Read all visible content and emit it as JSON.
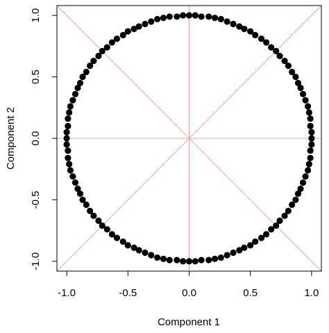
{
  "chart_data": {
    "type": "scatter",
    "x_label": "Component 1",
    "y_label": "Component 2",
    "color": "#000000",
    "xlim": [
      -1.08,
      1.08
    ],
    "ylim": [
      -1.08,
      1.08
    ],
    "xticks": [
      {
        "value": -1,
        "label": "-1.0"
      },
      {
        "value": -0.5,
        "label": "-0.5"
      },
      {
        "value": 0,
        "label": "0.0"
      },
      {
        "value": 0.5,
        "label": "0.5"
      },
      {
        "value": 1,
        "label": "1.0"
      }
    ],
    "yticks": [
      {
        "value": -1,
        "label": "-1.0"
      },
      {
        "value": -0.5,
        "label": "-0.5"
      },
      {
        "value": 0,
        "label": "0.0"
      },
      {
        "value": 0.5,
        "label": "0.5"
      },
      {
        "value": 1,
        "label": "1.0"
      }
    ],
    "x": [
      1,
      1,
      0.99,
      0.99,
      0.98,
      0.97,
      0.95,
      0.93,
      0.91,
      0.89,
      0.87,
      0.84,
      0.81,
      0.78,
      0.74,
      0.71,
      0.67,
      0.63,
      0.59,
      0.54,
      0.5,
      0.45,
      0.41,
      0.36,
      0.31,
      0.26,
      0.21,
      0.16,
      0.1,
      0.05,
      0,
      -0.05,
      -0.1,
      -0.16,
      -0.21,
      -0.26,
      -0.31,
      -0.36,
      -0.41,
      -0.45,
      -0.5,
      -0.54,
      -0.59,
      -0.63,
      -0.67,
      -0.71,
      -0.74,
      -0.78,
      -0.81,
      -0.84,
      -0.87,
      -0.89,
      -0.91,
      -0.93,
      -0.95,
      -0.97,
      -0.98,
      -0.99,
      -0.99,
      -1,
      -1,
      -1,
      -0.99,
      -0.99,
      -0.98,
      -0.97,
      -0.95,
      -0.93,
      -0.91,
      -0.89,
      -0.87,
      -0.84,
      -0.81,
      -0.78,
      -0.74,
      -0.71,
      -0.67,
      -0.63,
      -0.59,
      -0.54,
      -0.5,
      -0.45,
      -0.41,
      -0.36,
      -0.31,
      -0.26,
      -0.21,
      -0.16,
      -0.1,
      -0.05,
      0,
      0.05,
      0.1,
      0.16,
      0.21,
      0.26,
      0.31,
      0.36,
      0.41,
      0.45,
      0.5,
      0.54,
      0.59,
      0.63,
      0.67,
      0.71,
      0.74,
      0.78,
      0.81,
      0.84,
      0.87,
      0.89,
      0.91,
      0.93,
      0.95,
      0.97,
      0.98,
      0.99,
      0.99,
      1
    ],
    "values": [
      0,
      0.05,
      0.1,
      0.16,
      0.21,
      0.26,
      0.31,
      0.36,
      0.41,
      0.45,
      0.5,
      0.54,
      0.59,
      0.63,
      0.67,
      0.71,
      0.74,
      0.78,
      0.81,
      0.84,
      0.87,
      0.89,
      0.91,
      0.93,
      0.95,
      0.97,
      0.98,
      0.99,
      0.99,
      1,
      1,
      1,
      0.99,
      0.99,
      0.98,
      0.97,
      0.95,
      0.93,
      0.91,
      0.89,
      0.87,
      0.84,
      0.81,
      0.78,
      0.74,
      0.71,
      0.67,
      0.63,
      0.59,
      0.54,
      0.5,
      0.45,
      0.41,
      0.36,
      0.31,
      0.26,
      0.21,
      0.16,
      0.1,
      0.05,
      0,
      -0.05,
      -0.1,
      -0.16,
      -0.21,
      -0.26,
      -0.31,
      -0.36,
      -0.41,
      -0.45,
      -0.5,
      -0.54,
      -0.59,
      -0.63,
      -0.67,
      -0.71,
      -0.74,
      -0.78,
      -0.81,
      -0.84,
      -0.87,
      -0.89,
      -0.91,
      -0.93,
      -0.95,
      -0.97,
      -0.98,
      -0.99,
      -0.99,
      -1,
      -1,
      -1,
      -0.99,
      -0.99,
      -0.98,
      -0.97,
      -0.95,
      -0.93,
      -0.91,
      -0.89,
      -0.87,
      -0.84,
      -0.81,
      -0.78,
      -0.74,
      -0.71,
      -0.67,
      -0.63,
      -0.59,
      -0.54,
      -0.5,
      -0.45,
      -0.41,
      -0.36,
      -0.31,
      -0.26,
      -0.21,
      -0.16,
      -0.1,
      -0.05
    ]
  }
}
